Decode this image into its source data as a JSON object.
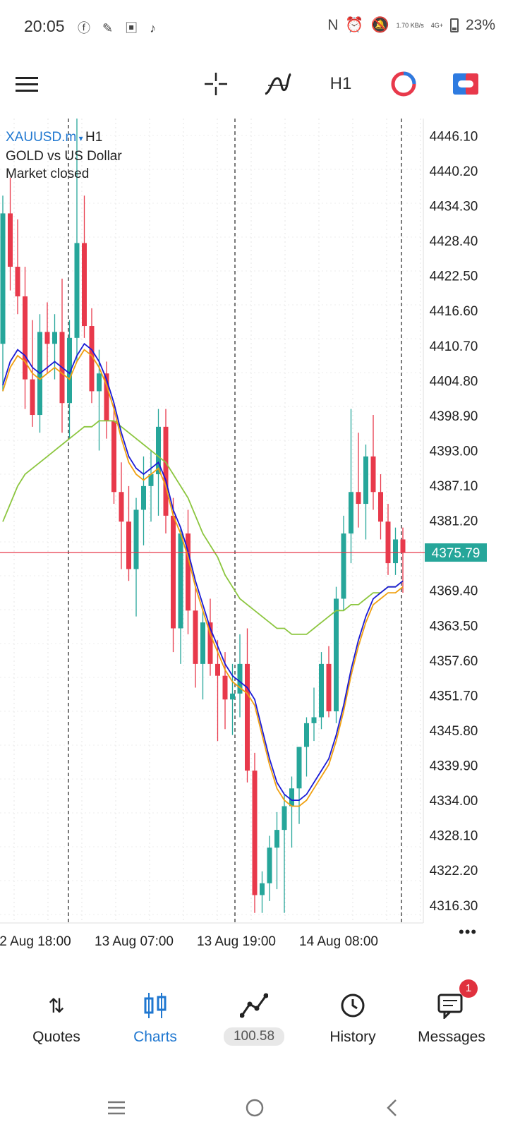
{
  "status_bar": {
    "time": "20:05",
    "apps": "ⓕ ✎ ▣ ♪",
    "net_speed": "1.70 KB/s",
    "net_type": "4G+",
    "battery": "23%"
  },
  "toolbar": {
    "menu_icon": "hamburger-icon",
    "crosshair_icon": "crosshair-icon",
    "indicators_icon": "indicators-icon",
    "timeframe": "H1",
    "objects_icon": "chart-objects-icon",
    "trade_icon": "one-click-trading-icon"
  },
  "chart_info": {
    "symbol": "XAUUSD.m",
    "timeframe": "H1",
    "description": "GOLD vs US Dollar",
    "status": "Market closed"
  },
  "chart_data": {
    "type": "candlestick",
    "price_ticks": [
      "4446.10",
      "4440.20",
      "4434.30",
      "4428.40",
      "4422.50",
      "4416.60",
      "4410.70",
      "4404.80",
      "4398.90",
      "4393.00",
      "4387.10",
      "4381.20",
      "4369.40",
      "4363.50",
      "4357.60",
      "4351.70",
      "4345.80",
      "4339.90",
      "4334.00",
      "4328.10",
      "4322.20",
      "4316.30"
    ],
    "current_price": "4375.79",
    "ylim": [
      4313.3,
      4449.0
    ],
    "time_labels": [
      "2 Aug 18:00",
      "13 Aug 07:00",
      "13 Aug 19:00",
      "14 Aug 08:00"
    ],
    "up_color": "#26a69a",
    "down_color": "#e8394b",
    "candles": [
      {
        "o": 4411,
        "h": 4436,
        "l": 4403,
        "c": 4433
      },
      {
        "o": 4433,
        "h": 4439,
        "l": 4420,
        "c": 4424
      },
      {
        "o": 4424,
        "h": 4432,
        "l": 4416,
        "c": 4419
      },
      {
        "o": 4419,
        "h": 4424,
        "l": 4400,
        "c": 4405
      },
      {
        "o": 4405,
        "h": 4415,
        "l": 4397,
        "c": 4399
      },
      {
        "o": 4399,
        "h": 4416,
        "l": 4396,
        "c": 4413
      },
      {
        "o": 4413,
        "h": 4418,
        "l": 4406,
        "c": 4411
      },
      {
        "o": 4411,
        "h": 4416,
        "l": 4405,
        "c": 4413
      },
      {
        "o": 4413,
        "h": 4422,
        "l": 4396,
        "c": 4401
      },
      {
        "o": 4401,
        "h": 4415,
        "l": 4395,
        "c": 4412
      },
      {
        "o": 4412,
        "h": 4449,
        "l": 4408,
        "c": 4428
      },
      {
        "o": 4428,
        "h": 4436,
        "l": 4412,
        "c": 4414
      },
      {
        "o": 4414,
        "h": 4417,
        "l": 4401,
        "c": 4403
      },
      {
        "o": 4403,
        "h": 4410,
        "l": 4393,
        "c": 4406
      },
      {
        "o": 4406,
        "h": 4408,
        "l": 4395,
        "c": 4398
      },
      {
        "o": 4398,
        "h": 4401,
        "l": 4384,
        "c": 4386
      },
      {
        "o": 4386,
        "h": 4391,
        "l": 4373,
        "c": 4381
      },
      {
        "o": 4381,
        "h": 4387,
        "l": 4371,
        "c": 4373
      },
      {
        "o": 4373,
        "h": 4385,
        "l": 4365,
        "c": 4383
      },
      {
        "o": 4383,
        "h": 4392,
        "l": 4377,
        "c": 4387
      },
      {
        "o": 4387,
        "h": 4393,
        "l": 4381,
        "c": 4389
      },
      {
        "o": 4389,
        "h": 4400,
        "l": 4382,
        "c": 4397
      },
      {
        "o": 4397,
        "h": 4400,
        "l": 4379,
        "c": 4382
      },
      {
        "o": 4382,
        "h": 4385,
        "l": 4359,
        "c": 4363
      },
      {
        "o": 4363,
        "h": 4380,
        "l": 4357,
        "c": 4379
      },
      {
        "o": 4379,
        "h": 4383,
        "l": 4362,
        "c": 4366
      },
      {
        "o": 4366,
        "h": 4370,
        "l": 4353,
        "c": 4357
      },
      {
        "o": 4357,
        "h": 4366,
        "l": 4351,
        "c": 4364
      },
      {
        "o": 4364,
        "h": 4368,
        "l": 4355,
        "c": 4357
      },
      {
        "o": 4357,
        "h": 4361,
        "l": 4344,
        "c": 4355
      },
      {
        "o": 4355,
        "h": 4359,
        "l": 4346,
        "c": 4351
      },
      {
        "o": 4351,
        "h": 4357,
        "l": 4345,
        "c": 4352
      },
      {
        "o": 4352,
        "h": 4362,
        "l": 4348,
        "c": 4357
      },
      {
        "o": 4357,
        "h": 4363,
        "l": 4337,
        "c": 4339
      },
      {
        "o": 4339,
        "h": 4342,
        "l": 4315,
        "c": 4318
      },
      {
        "o": 4318,
        "h": 4322,
        "l": 4315,
        "c": 4320
      },
      {
        "o": 4320,
        "h": 4328,
        "l": 4317,
        "c": 4326
      },
      {
        "o": 4326,
        "h": 4332,
        "l": 4319,
        "c": 4329
      },
      {
        "o": 4329,
        "h": 4335,
        "l": 4315,
        "c": 4333
      },
      {
        "o": 4333,
        "h": 4338,
        "l": 4326,
        "c": 4336
      },
      {
        "o": 4336,
        "h": 4343,
        "l": 4330,
        "c": 4343
      },
      {
        "o": 4343,
        "h": 4348,
        "l": 4338,
        "c": 4347
      },
      {
        "o": 4347,
        "h": 4353,
        "l": 4344,
        "c": 4348
      },
      {
        "o": 4348,
        "h": 4359,
        "l": 4346,
        "c": 4357
      },
      {
        "o": 4357,
        "h": 4360,
        "l": 4348,
        "c": 4349
      },
      {
        "o": 4349,
        "h": 4370,
        "l": 4347,
        "c": 4368
      },
      {
        "o": 4368,
        "h": 4382,
        "l": 4366,
        "c": 4379
      },
      {
        "o": 4379,
        "h": 4400,
        "l": 4374,
        "c": 4386
      },
      {
        "o": 4386,
        "h": 4396,
        "l": 4380,
        "c": 4384
      },
      {
        "o": 4384,
        "h": 4394,
        "l": 4378,
        "c": 4392
      },
      {
        "o": 4392,
        "h": 4399,
        "l": 4383,
        "c": 4386
      },
      {
        "o": 4386,
        "h": 4389,
        "l": 4378,
        "c": 4381
      },
      {
        "o": 4381,
        "h": 4384,
        "l": 4372,
        "c": 4374
      },
      {
        "o": 4374,
        "h": 4380,
        "l": 4372,
        "c": 4378
      },
      {
        "o": 4378,
        "h": 4380,
        "l": 4369,
        "c": 4375.79
      }
    ],
    "ma_fast": [
      4404,
      4408,
      4410,
      4409,
      4407,
      4406,
      4407,
      4408,
      4407,
      4406,
      4409,
      4411,
      4410,
      4408,
      4405,
      4401,
      4396,
      4392,
      4390,
      4389,
      4390,
      4391,
      4388,
      4383,
      4380,
      4376,
      4371,
      4367,
      4363,
      4360,
      4357,
      4355,
      4354,
      4353,
      4351,
      4346,
      4341,
      4337,
      4335,
      4334,
      4334,
      4335,
      4337,
      4339,
      4341,
      4345,
      4350,
      4356,
      4361,
      4365,
      4368,
      4369,
      4370,
      4370,
      4371
    ],
    "ma_slow": [
      4403,
      4407,
      4409,
      4408,
      4406,
      4405,
      4406,
      4407,
      4406,
      4405,
      4408,
      4410,
      4409,
      4407,
      4404,
      4400,
      4395,
      4391,
      4389,
      4388,
      4389,
      4390,
      4387,
      4382,
      4379,
      4375,
      4370,
      4366,
      4362,
      4359,
      4356,
      4354,
      4353,
      4352,
      4350,
      4345,
      4340,
      4336,
      4334,
      4333,
      4333,
      4334,
      4336,
      4338,
      4340,
      4344,
      4349,
      4355,
      4360,
      4364,
      4367,
      4368,
      4369,
      4369,
      4370
    ],
    "ma_long": [
      4381,
      4384,
      4387,
      4389,
      4390,
      4391,
      4392,
      4393,
      4394,
      4395,
      4396,
      4397,
      4397,
      4398,
      4398,
      4398,
      4397,
      4396,
      4395,
      4394,
      4393,
      4392,
      4391,
      4389,
      4387,
      4385,
      4382,
      4379,
      4377,
      4375,
      4372,
      4370,
      4368,
      4367,
      4366,
      4365,
      4364,
      4363,
      4363,
      4362,
      4362,
      4362,
      4363,
      4364,
      4365,
      4366,
      4366,
      4367,
      4367,
      4368,
      4369,
      4369,
      4370,
      4370,
      4371
    ],
    "fast_color": "#1a1ad6",
    "slow_color": "#f0a010",
    "long_color": "#8cc63f",
    "price_line_color": "#e8394b",
    "price_label_bg": "#26a69a"
  },
  "bottom_nav": {
    "items": [
      {
        "label": "Quotes",
        "icon": "quotes-arrows-icon"
      },
      {
        "label": "Charts",
        "icon": "charts-candles-icon"
      },
      {
        "label": "100.58",
        "icon": "trade-line-icon"
      },
      {
        "label": "History",
        "icon": "history-clock-icon"
      },
      {
        "label": "Messages",
        "icon": "messages-icon",
        "badge": "1"
      }
    ],
    "active": "Charts"
  },
  "system_nav": {
    "recents": "recents-icon",
    "home": "home-icon",
    "back": "back-icon"
  }
}
